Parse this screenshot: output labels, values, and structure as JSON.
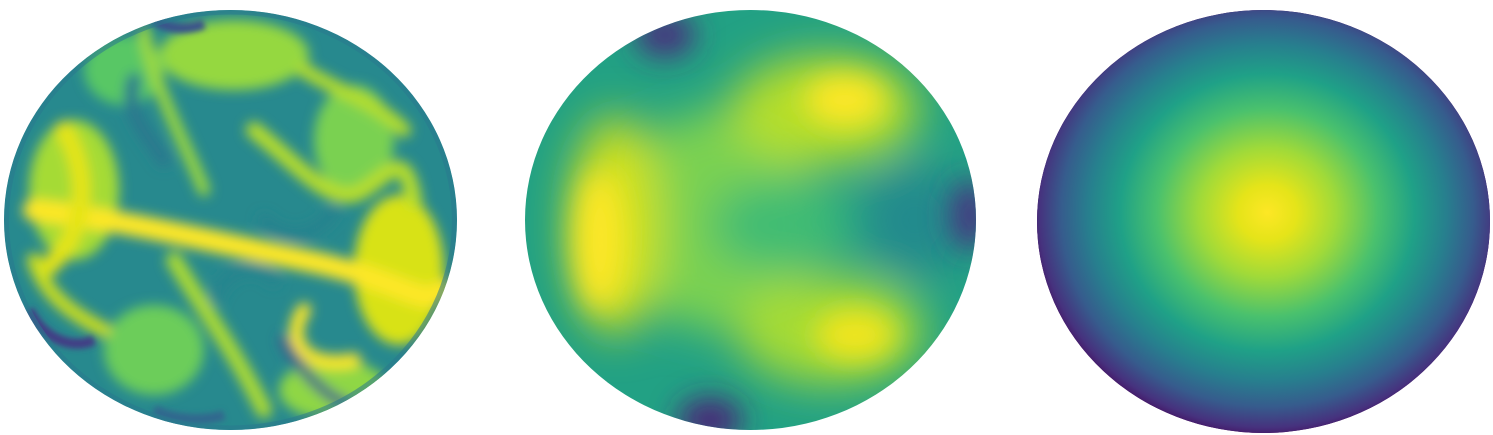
{
  "figure": {
    "colormap": "viridis",
    "colors": {
      "low": "#440154",
      "mid_low": "#3b528b",
      "mid": "#21918c",
      "mid_high": "#5ec962",
      "high": "#fde725"
    },
    "panels": [
      {
        "kind": "turbulent swirling field"
      },
      {
        "kind": "smooth multi-lobe field"
      },
      {
        "kind": "radial gaussian field"
      }
    ]
  }
}
